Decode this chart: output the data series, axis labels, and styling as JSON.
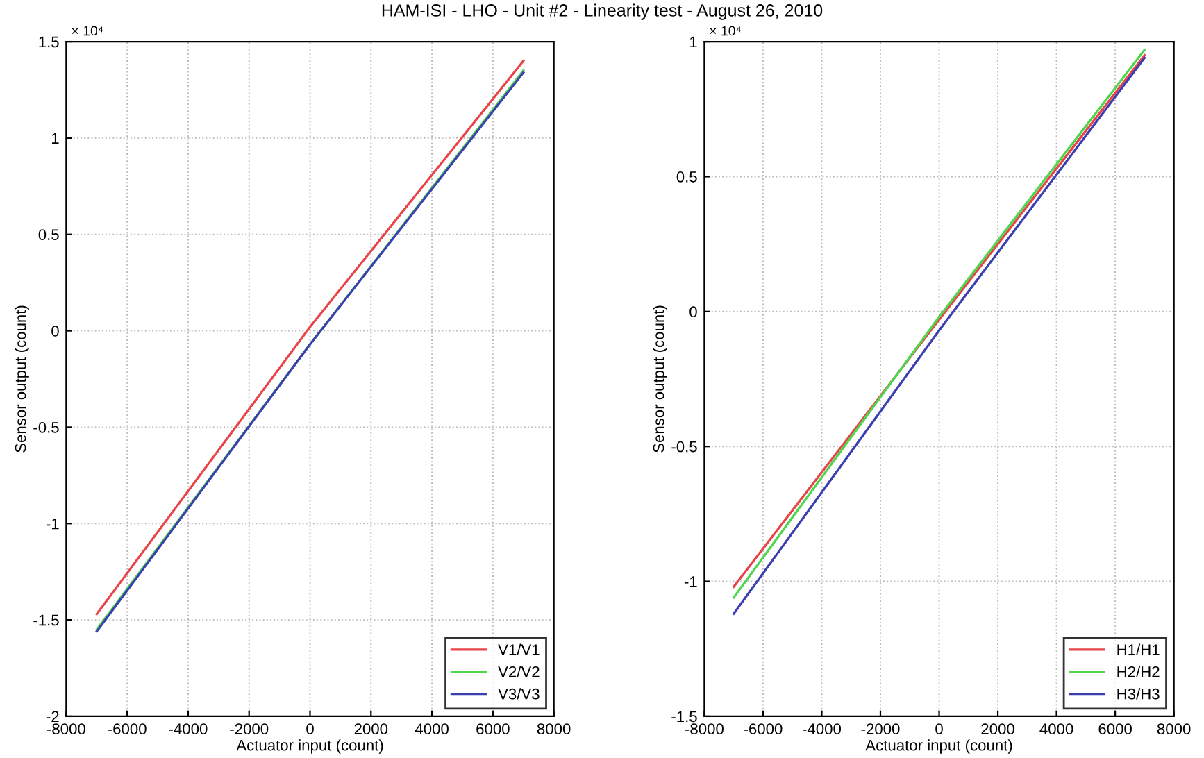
{
  "chart_data": [
    {
      "type": "line",
      "title": "HAM-ISI - LHO - Unit #2 - Linearity test - August 26, 2010",
      "xlabel": "Actuator input (count)",
      "ylabel": "Sensor output (count)",
      "annotations": [
        "× 10⁴"
      ],
      "x": [
        -7000,
        0,
        7000
      ],
      "series": [
        {
          "name": "V1/V1",
          "color": "#e8454a",
          "values": [
            -1.47,
            0.02,
            1.4
          ]
        },
        {
          "name": "V2/V2",
          "color": "#4fd64f",
          "values": [
            -1.55,
            -0.07,
            1.35
          ]
        },
        {
          "name": "V3/V3",
          "color": "#3b3fb0",
          "values": [
            -1.56,
            -0.07,
            1.34
          ]
        }
      ],
      "xlim": [
        -8000,
        8000
      ],
      "xticks": [
        -8000,
        -6000,
        -4000,
        -2000,
        0,
        2000,
        4000,
        6000,
        8000
      ],
      "ylim": [
        -2,
        1.5
      ],
      "yticks": [
        -2,
        -1.5,
        -1,
        -0.5,
        0,
        0.5,
        1,
        1.5
      ],
      "grid": true,
      "legend": "bottom right"
    },
    {
      "type": "line",
      "xlabel": "Actuator input (count)",
      "ylabel": "Sensor output (count)",
      "annotations": [
        "× 10⁴"
      ],
      "x": [
        -7000,
        0,
        7000
      ],
      "series": [
        {
          "name": "H1/H1",
          "color": "#e8454a",
          "values": [
            -1.02,
            -0.03,
            0.95
          ]
        },
        {
          "name": "H2/H2",
          "color": "#4fd64f",
          "values": [
            -1.06,
            -0.02,
            0.97
          ]
        },
        {
          "name": "H3/H3",
          "color": "#3b3fb0",
          "values": [
            -1.12,
            -0.07,
            0.94
          ]
        }
      ],
      "xlim": [
        -8000,
        8000
      ],
      "xticks": [
        -8000,
        -6000,
        -4000,
        -2000,
        0,
        2000,
        4000,
        6000,
        8000
      ],
      "ylim": [
        -1.5,
        1
      ],
      "yticks": [
        -1.5,
        -1,
        -0.5,
        0,
        0.5,
        1
      ],
      "grid": true,
      "legend": "bottom right"
    }
  ]
}
